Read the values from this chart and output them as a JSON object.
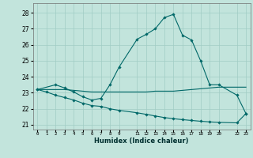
{
  "xlabel": "Humidex (Indice chaleur)",
  "bg_color": "#c2e4dc",
  "grid_color": "#a0ccc4",
  "line_color": "#006868",
  "yticks": [
    21,
    22,
    23,
    24,
    25,
    26,
    27,
    28
  ],
  "ylim": [
    20.7,
    28.6
  ],
  "xlim": [
    -0.5,
    23.5
  ],
  "x_tick_positions": [
    0,
    1,
    2,
    3,
    4,
    5,
    6,
    7,
    8,
    9,
    11,
    12,
    13,
    14,
    15,
    16,
    17,
    18,
    19,
    20,
    22,
    23
  ],
  "x_tick_labels": [
    "0",
    "1",
    "2",
    "3",
    "4",
    "5",
    "6",
    "7",
    "8",
    "9",
    "11",
    "12",
    "13",
    "14",
    "15",
    "16",
    "17",
    "18",
    "19",
    "20",
    "22",
    "23"
  ],
  "line1_x": [
    0,
    2,
    3,
    4,
    5,
    6,
    7,
    8,
    9,
    11,
    12,
    13,
    14,
    15,
    16,
    17,
    18,
    19,
    20,
    22,
    23
  ],
  "line1_y": [
    23.2,
    23.5,
    23.3,
    23.05,
    22.75,
    22.55,
    22.65,
    23.5,
    24.6,
    26.35,
    26.65,
    27.0,
    27.7,
    27.9,
    26.6,
    26.3,
    25.0,
    23.5,
    23.5,
    22.85,
    21.7
  ],
  "line2_x": [
    0,
    1,
    2,
    3,
    4,
    5,
    6,
    7,
    8,
    9,
    11,
    12,
    13,
    14,
    15,
    16,
    17,
    18,
    19,
    20,
    22,
    23
  ],
  "line2_y": [
    23.2,
    23.2,
    23.2,
    23.2,
    23.15,
    23.1,
    23.05,
    23.05,
    23.05,
    23.05,
    23.05,
    23.05,
    23.1,
    23.1,
    23.1,
    23.15,
    23.2,
    23.25,
    23.3,
    23.35,
    23.35,
    23.35
  ],
  "line3_x": [
    0,
    1,
    2,
    3,
    4,
    5,
    6,
    7,
    8,
    9,
    11,
    12,
    13,
    14,
    15,
    16,
    17,
    18,
    19,
    20,
    22,
    23
  ],
  "line3_y": [
    23.2,
    23.05,
    22.85,
    22.7,
    22.55,
    22.35,
    22.2,
    22.15,
    22.0,
    21.9,
    21.75,
    21.65,
    21.55,
    21.45,
    21.38,
    21.32,
    21.27,
    21.22,
    21.18,
    21.15,
    21.12,
    21.7
  ]
}
